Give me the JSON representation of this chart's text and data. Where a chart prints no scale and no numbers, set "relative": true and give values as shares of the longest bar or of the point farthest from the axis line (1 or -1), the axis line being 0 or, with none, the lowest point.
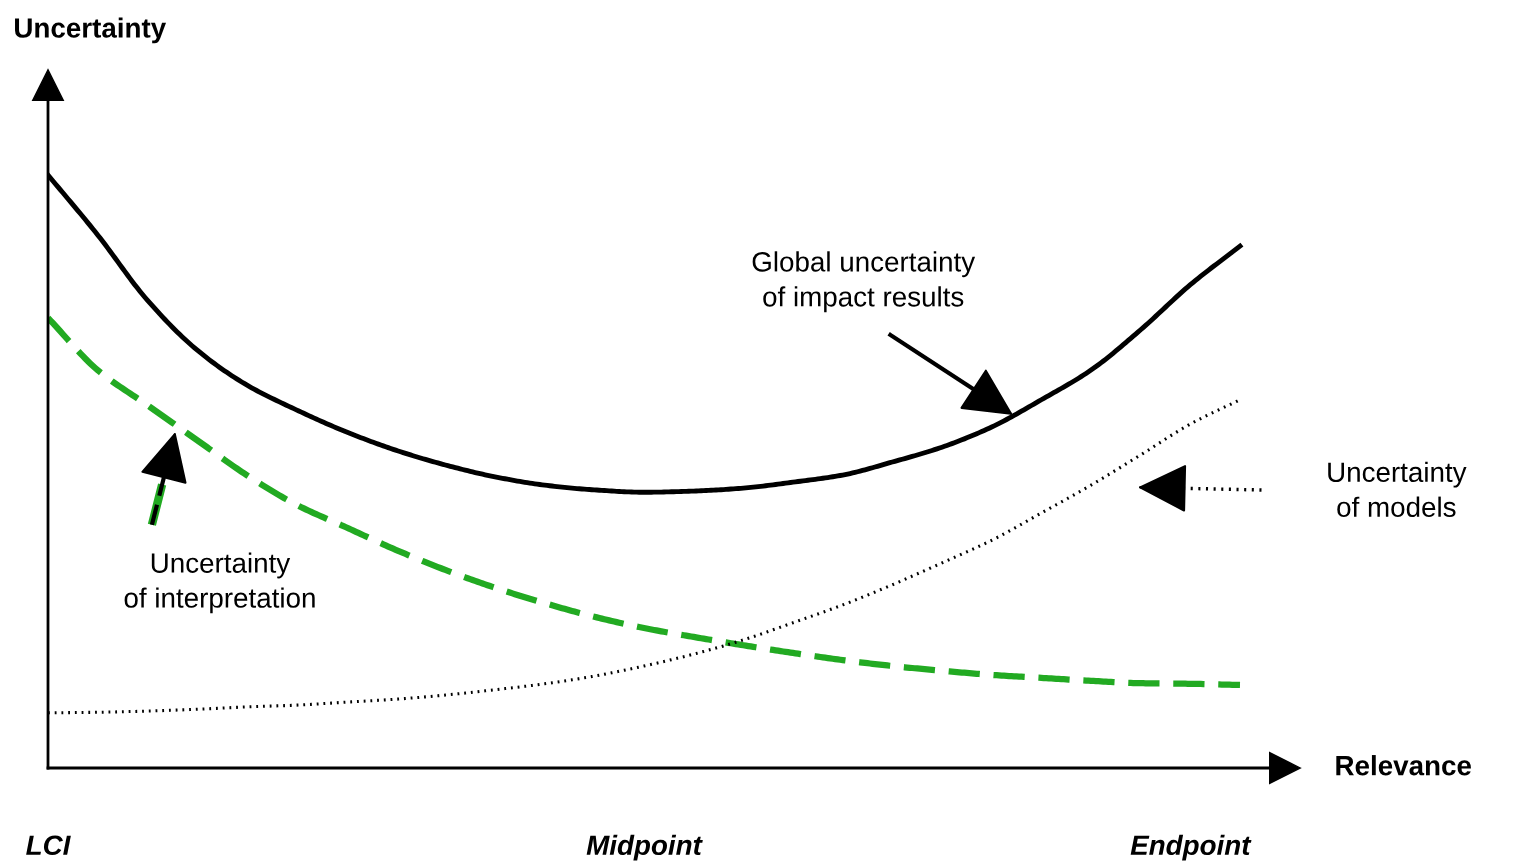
{
  "chart_data": {
    "type": "line",
    "relative": true,
    "xlabel": "Relevance",
    "ylabel": "Uncertainty",
    "legend": false,
    "grid": false,
    "marker": "none",
    "categories": [
      "LCI",
      null,
      null,
      null,
      null,
      null,
      null,
      null,
      null,
      null,
      null,
      null,
      "Midpoint",
      null,
      null,
      null,
      null,
      null,
      null,
      null,
      null,
      null,
      null,
      "Endpoint",
      null
    ],
    "annotations": [
      "Global uncertainty of impact results",
      "Uncertainty of interpretation",
      "Uncertainty of models"
    ],
    "series": [
      {
        "color": "#000000",
        "line_style": "solid",
        "values": [
          1.0,
          0.899,
          0.789,
          0.705,
          0.646,
          0.604,
          0.567,
          0.536,
          0.511,
          0.491,
          0.477,
          0.469,
          0.465,
          0.467,
          0.472,
          0.482,
          0.494,
          0.516,
          0.541,
          0.575,
          0.621,
          0.671,
          0.739,
          0.815,
          0.88
        ]
      },
      {
        "color": "#22aa22",
        "line_style": "dashed",
        "values": [
          0.759,
          0.671,
          0.612,
          0.553,
          0.494,
          0.444,
          0.406,
          0.368,
          0.334,
          0.304,
          0.278,
          0.255,
          0.236,
          0.221,
          0.207,
          0.194,
          0.182,
          0.172,
          0.164,
          0.157,
          0.152,
          0.147,
          0.143,
          0.142,
          0.14
        ]
      },
      {
        "color": "#000000",
        "line_style": "dotted",
        "values": [
          0.093,
          0.094,
          0.096,
          0.099,
          0.103,
          0.106,
          0.111,
          0.116,
          0.123,
          0.132,
          0.142,
          0.155,
          0.172,
          0.192,
          0.216,
          0.245,
          0.275,
          0.309,
          0.346,
          0.384,
          0.43,
          0.477,
          0.528,
          0.58,
          0.621
        ]
      }
    ]
  }
}
